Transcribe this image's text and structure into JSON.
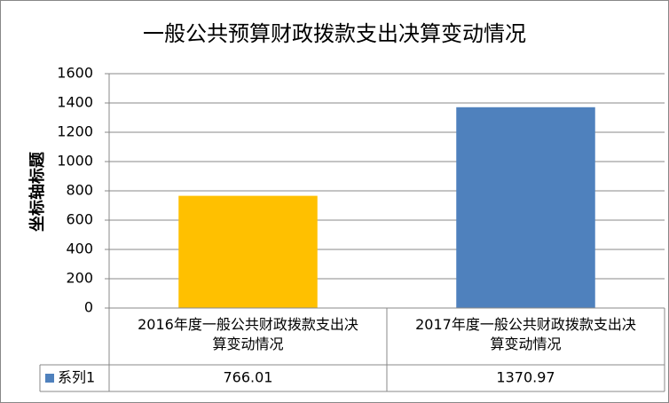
{
  "chart_data": {
    "type": "bar",
    "title": "一般公共预算财政拨款支出决算变动情况",
    "y_label": "坐标轴标题",
    "categories": [
      "2016年度一般公共财政拨款支出决算变动情况",
      "2017年度一般公共财政拨款支出决算变动情况"
    ],
    "series": [
      {
        "name": "系列1",
        "color": "#4F81BD",
        "values": [
          766.01,
          1370.97
        ]
      }
    ],
    "point_colors": [
      "#FFC000",
      "#4F81BD"
    ],
    "ylim": [
      0,
      1600
    ],
    "yticks": [
      0,
      200,
      400,
      600,
      800,
      1000,
      1200,
      1400,
      1600
    ],
    "grid": true
  }
}
